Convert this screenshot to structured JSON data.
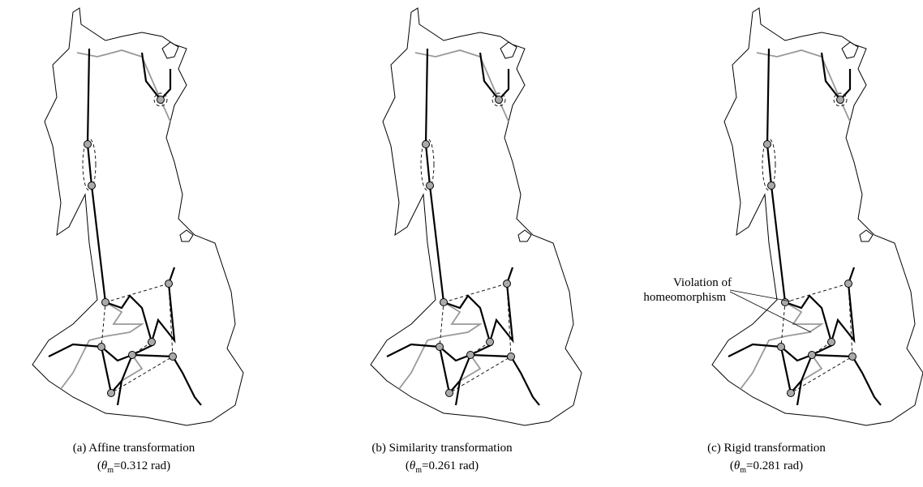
{
  "panels": [
    {
      "label": "(a) Affine transformation",
      "open": "(",
      "symbol": "θ",
      "subscript": "m",
      "rest": "=0.312 rad)"
    },
    {
      "label": "(b) Similarity transformation",
      "open": "(",
      "symbol": "θ",
      "subscript": "m",
      "rest": "=0.261 rad)"
    },
    {
      "label": "(c) Rigid transformation",
      "open": "(",
      "symbol": "θ",
      "subscript": "m",
      "rest": "=0.281 rad)"
    }
  ],
  "annotation": {
    "line1": "Violation of",
    "line2": "homeomorphism"
  }
}
